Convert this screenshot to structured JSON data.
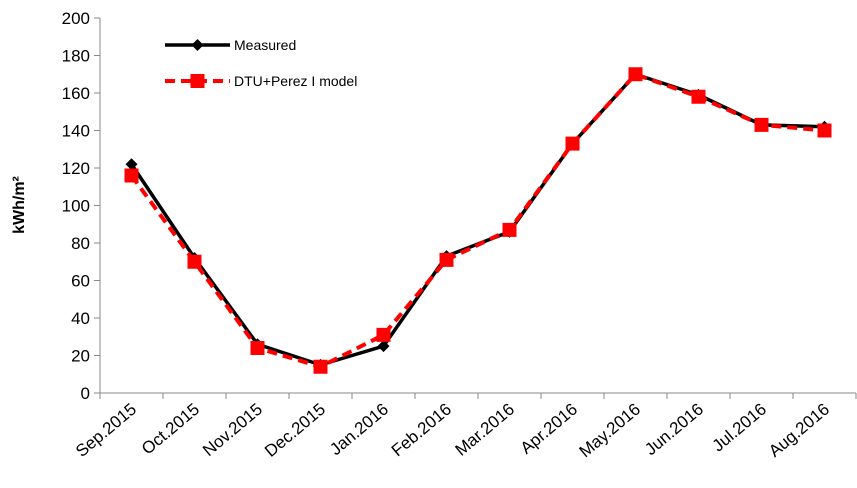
{
  "chart_data": {
    "type": "line",
    "categories": [
      "Sep.2015",
      "Oct.2015",
      "Nov.2015",
      "Dec.2015",
      "Jan.2016",
      "Feb.2016",
      "Mar.2016",
      "Apr.2016",
      "May.2016",
      "Jun.2016",
      "Jul.2016",
      "Aug.2016"
    ],
    "series": [
      {
        "name": "Measured",
        "color": "#000000",
        "values": [
          122,
          72,
          26,
          15,
          25,
          73,
          86,
          133,
          170,
          159,
          143,
          142
        ]
      },
      {
        "name": "DTU+Perez I model",
        "color": "#ff0000",
        "values": [
          116,
          70,
          24,
          14,
          31,
          71,
          87,
          133,
          170,
          158,
          143,
          140
        ]
      }
    ],
    "y_label": "kWh/m²",
    "ylim": [
      0,
      200
    ],
    "yticks": [
      0,
      20,
      40,
      60,
      80,
      100,
      120,
      140,
      160,
      180,
      200
    ],
    "legend": "upper left",
    "grid": false
  }
}
